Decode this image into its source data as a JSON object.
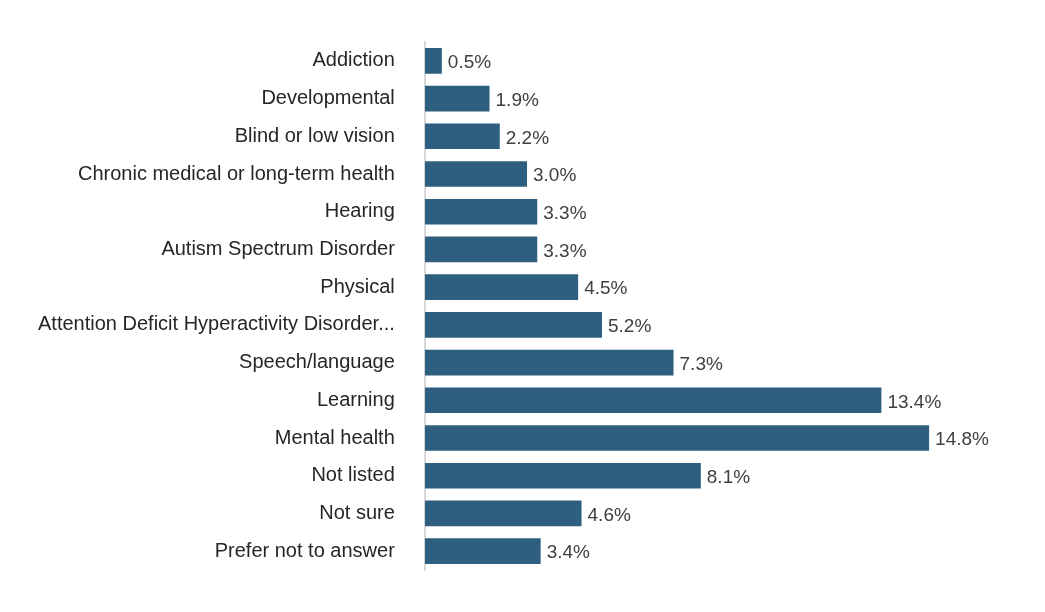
{
  "chart_data": {
    "type": "bar",
    "orientation": "horizontal",
    "categories": [
      "Addiction",
      "Developmental",
      "Blind or low vision",
      "Chronic medical or long-term health",
      "Hearing",
      "Autism Spectrum Disorder",
      "Physical",
      "Attention Deficit Hyperactivity Disorder...",
      "Speech/language",
      "Learning",
      "Mental health",
      "Not listed",
      "Not sure",
      "Prefer not to answer"
    ],
    "values": [
      0.5,
      1.9,
      2.2,
      3.0,
      3.3,
      3.3,
      4.5,
      5.2,
      7.3,
      13.4,
      14.8,
      8.1,
      4.6,
      3.4
    ],
    "value_labels": [
      "0.5%",
      "1.9%",
      "2.2%",
      "3.0%",
      "3.3%",
      "3.3%",
      "4.5%",
      "5.2%",
      "7.3%",
      "13.4%",
      "14.8%",
      "8.1%",
      "4.6%",
      "3.4%"
    ],
    "color": "#2e5f80",
    "legend": false
  }
}
